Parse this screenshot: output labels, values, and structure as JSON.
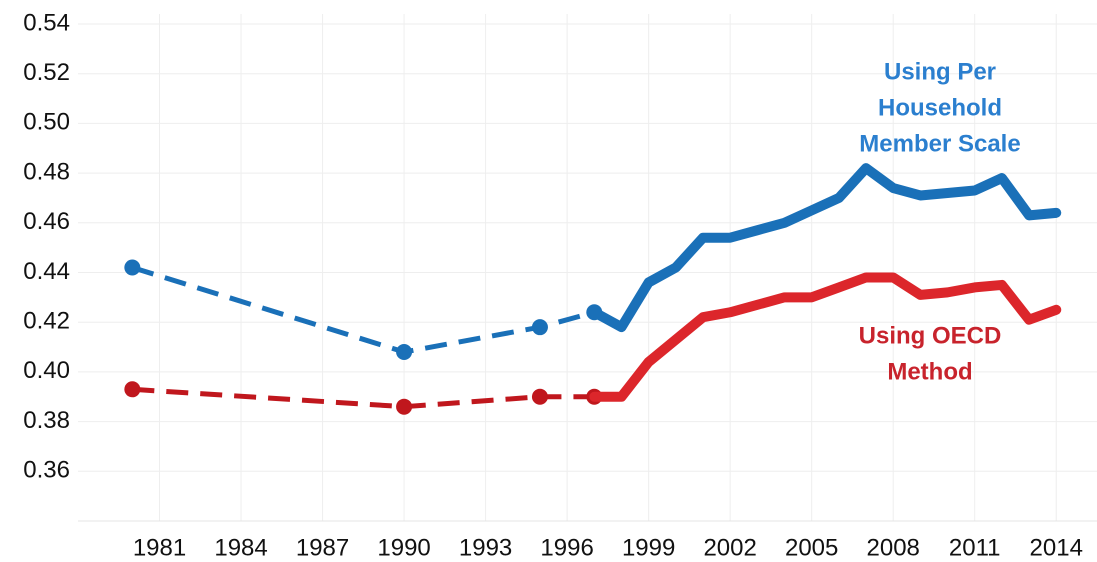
{
  "chart_data": {
    "type": "line",
    "xlim": [
      1978,
      2015.5
    ],
    "xticks": [
      1981,
      1984,
      1987,
      1990,
      1993,
      1996,
      1999,
      2002,
      2005,
      2008,
      2011,
      2014
    ],
    "ylim": [
      0.34,
      0.54
    ],
    "yticks": [
      0.36,
      {
        "value": 0.38,
        "label": "0.38"
      },
      {
        "value": 0.4,
        "label": "0.40"
      },
      {
        "value": 0.42,
        "label": "0.42"
      },
      {
        "value": 0.44,
        "label": "0.44"
      },
      {
        "value": 0.46,
        "label": "0.46"
      },
      {
        "value": 0.48,
        "label": "0.48"
      },
      {
        "value": 0.5,
        "label": "0.50"
      },
      {
        "value": 0.52,
        "label": "0.52"
      },
      {
        "value": 0.54,
        "label": "0.54"
      }
    ],
    "grid": true,
    "series": [
      {
        "color": "#1a70b8",
        "dashed": true,
        "markers": true,
        "x": [
          1980,
          1990,
          1995,
          1997
        ],
        "values": [
          0.442,
          0.408,
          0.418,
          0.424
        ]
      },
      {
        "name": [
          "Using Per",
          "Household",
          "Member Scale"
        ],
        "label_color": "#2b7fcf",
        "color": "#1a70b8",
        "dashed": false,
        "markers": false,
        "x": [
          1997,
          1998,
          1999,
          2000,
          2001,
          2002,
          2003,
          2004,
          2005,
          2006,
          2007,
          2008,
          2009,
          2010,
          2011,
          2012,
          2013,
          2014
        ],
        "values": [
          0.424,
          0.418,
          0.436,
          0.442,
          0.454,
          0.454,
          0.457,
          0.46,
          0.465,
          0.47,
          0.482,
          0.474,
          0.471,
          0.472,
          0.473,
          0.478,
          0.463,
          0.464
        ]
      },
      {
        "color": "#c0171d",
        "dashed": true,
        "markers": true,
        "x": [
          1980,
          1990,
          1995,
          1997
        ],
        "values": [
          0.393,
          0.386,
          0.39,
          0.39
        ]
      },
      {
        "name": [
          "Using OECD",
          "Method"
        ],
        "label_color": "#c8232c",
        "color": "#dc262b",
        "dashed": false,
        "markers": false,
        "x": [
          1997,
          1998,
          1999,
          2000,
          2001,
          2002,
          2003,
          2004,
          2005,
          2006,
          2007,
          2008,
          2009,
          2010,
          2011,
          2012,
          2013,
          2014
        ],
        "values": [
          0.39,
          0.39,
          0.404,
          0.413,
          0.422,
          0.424,
          0.427,
          0.43,
          0.43,
          0.434,
          0.438,
          0.438,
          0.431,
          0.432,
          0.434,
          0.435,
          0.421,
          0.425
        ]
      }
    ]
  }
}
